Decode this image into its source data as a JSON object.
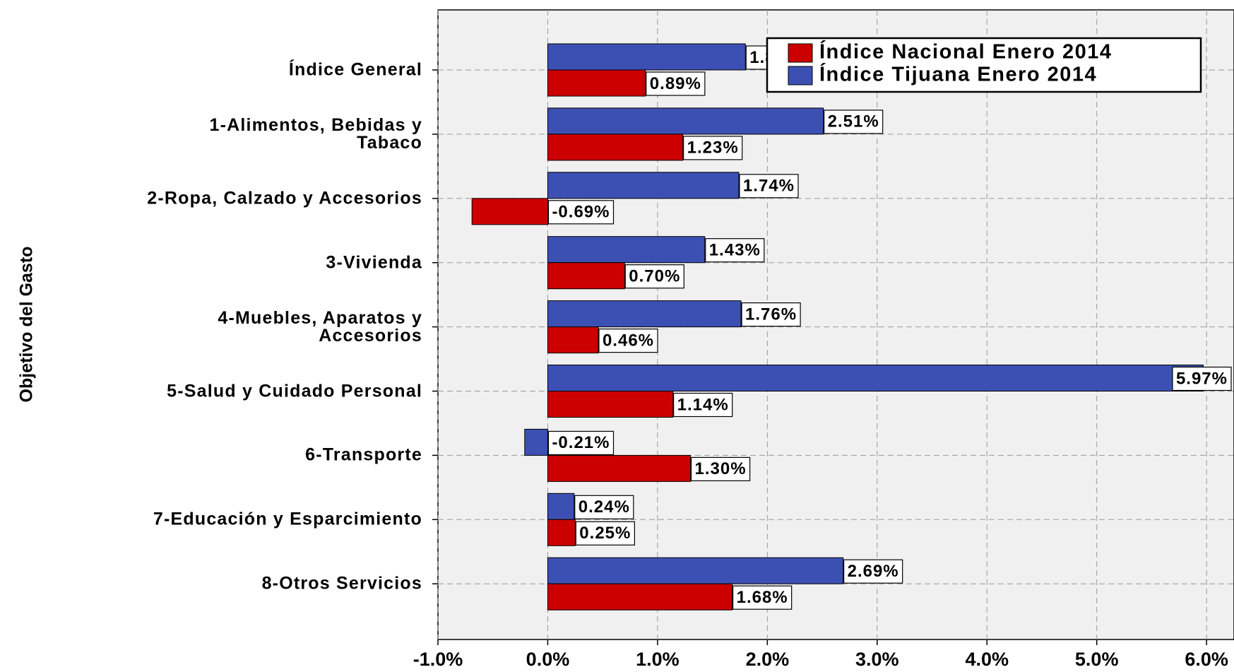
{
  "chart_data": {
    "type": "bar",
    "orientation": "horizontal",
    "y_label": "Objetivo del Gasto",
    "categories": [
      "Índice General",
      "1-Alimentos, Bebidas y\nTabaco",
      "2-Ropa, Calzado y Accesorios",
      "3-Vivienda",
      "4-Muebles, Aparatos y\nAccesorios",
      "5-Salud y Cuidado Personal",
      "6-Transporte",
      "7-Educación y Esparcimiento",
      "8-Otros Servicios"
    ],
    "series": [
      {
        "name": "Índice Nacional Enero 2014",
        "color": "#cc0000",
        "values": [
          0.89,
          1.23,
          -0.69,
          0.7,
          0.46,
          1.14,
          1.3,
          0.25,
          1.68
        ],
        "value_labels": [
          "0.89%",
          "1.23%",
          "-0.69%",
          "0.70%",
          "0.46%",
          "1.14%",
          "1.30%",
          "0.25%",
          "1.68%"
        ]
      },
      {
        "name": "Índice Tijuana Enero 2014",
        "color": "#3c50b4",
        "values": [
          1.8,
          2.51,
          1.74,
          1.43,
          1.76,
          5.97,
          -0.21,
          0.24,
          2.69
        ],
        "value_labels": [
          "1.80%",
          "2.51%",
          "1.74%",
          "1.43%",
          "1.76%",
          "5.97%",
          "-0.21%",
          "0.24%",
          "2.69%"
        ]
      }
    ],
    "xlim": [
      -1,
      6.25
    ],
    "xticks": [
      {
        "value": -1,
        "label": "-1.0%"
      },
      {
        "value": 0,
        "label": "0.0%"
      },
      {
        "value": 1,
        "label": "1.0%"
      },
      {
        "value": 2,
        "label": "2.0%"
      },
      {
        "value": 3,
        "label": "3.0%"
      },
      {
        "value": 4,
        "label": "4.0%"
      },
      {
        "value": 5,
        "label": "5.0%"
      },
      {
        "value": 6,
        "label": "6.0%"
      }
    ],
    "grid": true,
    "legend": "upper right"
  }
}
